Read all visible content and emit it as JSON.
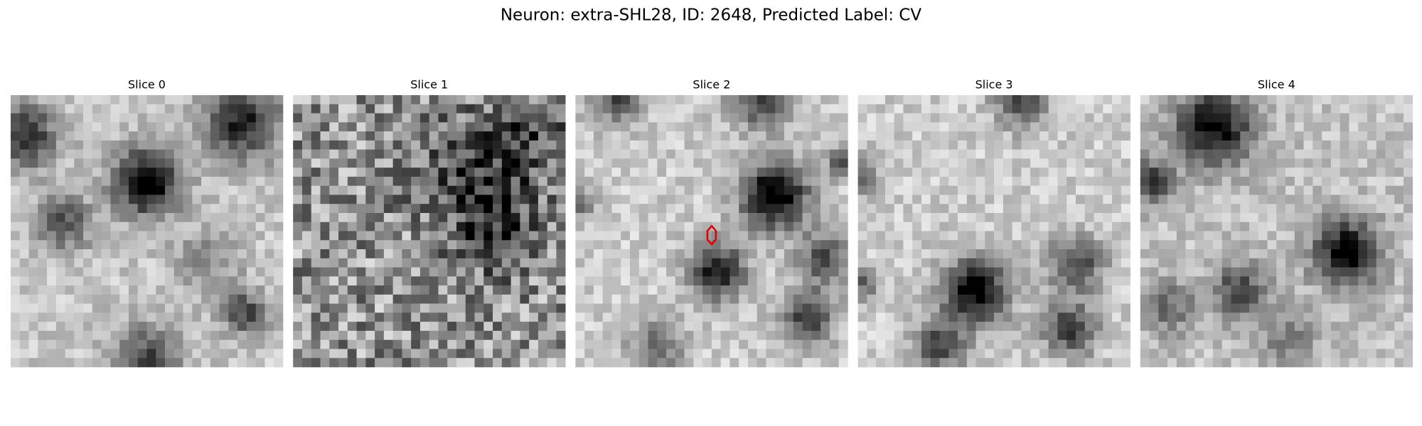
{
  "title": "Neuron: extra-SHL28, ID: 2648, Predicted Label: CV",
  "panels": [
    {
      "title": "Slice 0"
    },
    {
      "title": "Slice 1"
    },
    {
      "title": "Slice 2"
    },
    {
      "title": "Slice 3"
    },
    {
      "title": "Slice 4"
    }
  ]
}
